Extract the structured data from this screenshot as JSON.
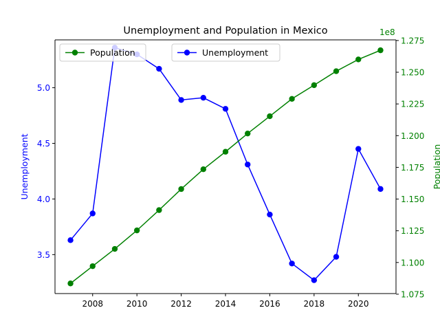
{
  "chart_data": {
    "type": "line",
    "title": "Unemployment and Population in Mexico",
    "xlabel": "",
    "x": [
      2007,
      2008,
      2009,
      2010,
      2011,
      2012,
      2013,
      2014,
      2015,
      2016,
      2017,
      2018,
      2019,
      2020,
      2021
    ],
    "xlim": [
      2006.3,
      2021.7
    ],
    "xticks": [
      2008,
      2010,
      2012,
      2014,
      2016,
      2018,
      2020
    ],
    "y_left": {
      "label": "Unemployment",
      "color": "#0000ff",
      "ylim": [
        3.15,
        5.43
      ],
      "ticks": [
        3.5,
        4.0,
        4.5,
        5.0
      ],
      "tick_labels": [
        "3.5",
        "4.0",
        "4.5",
        "5.0"
      ]
    },
    "y_right": {
      "label": "Population",
      "color": "#008000",
      "offset_text": "1e8",
      "ylim": [
        1.0755,
        1.2755
      ],
      "ticks": [
        1.075,
        1.1,
        1.125,
        1.15,
        1.175,
        1.2,
        1.225,
        1.25,
        1.275
      ],
      "tick_labels": [
        "1.075",
        "1.100",
        "1.125",
        "1.150",
        "1.175",
        "1.200",
        "1.225",
        "1.250",
        "1.275"
      ]
    },
    "series": [
      {
        "name": "Unemployment",
        "axis": "left",
        "color": "#0000ff",
        "values": [
          3.63,
          3.87,
          5.36,
          5.3,
          5.17,
          4.89,
          4.91,
          4.81,
          4.31,
          3.86,
          3.42,
          3.27,
          3.48,
          4.45,
          4.09
        ]
      },
      {
        "name": "Population",
        "axis": "right",
        "color": "#008000",
        "values": [
          1.0835,
          1.0971,
          1.1107,
          1.1253,
          1.1413,
          1.1579,
          1.1735,
          1.1873,
          1.2017,
          1.2153,
          1.229,
          1.2398,
          1.2508,
          1.2601,
          1.2673
        ]
      }
    ],
    "legends": [
      {
        "label": "Population",
        "color": "#008000",
        "placement": "upper-left"
      },
      {
        "label": "Unemployment",
        "color": "#0000ff",
        "placement": "upper-center"
      }
    ],
    "grid": false
  }
}
